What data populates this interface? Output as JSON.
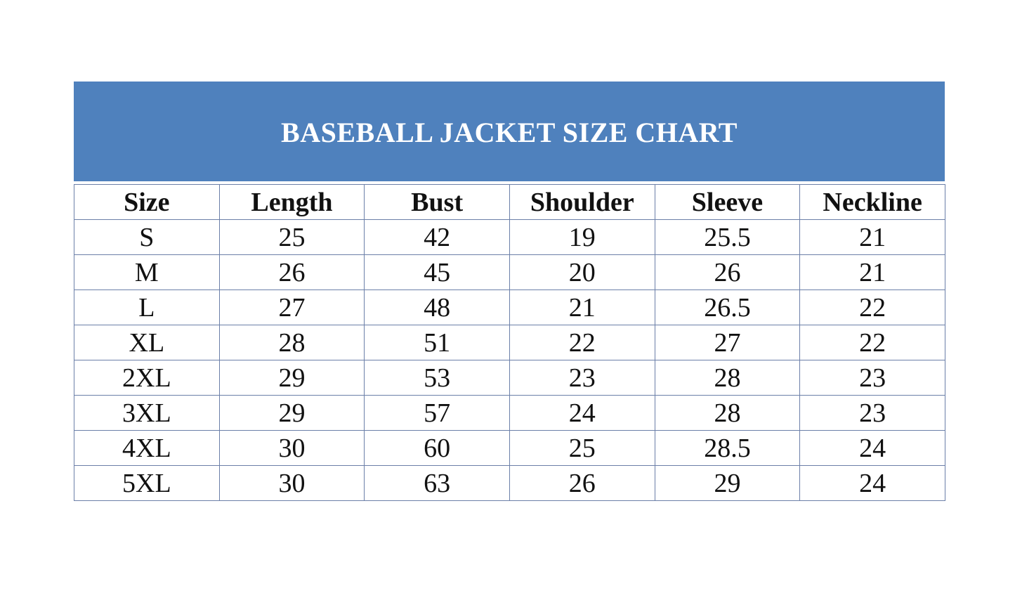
{
  "title": "BASEBALL JACKET SIZE CHART",
  "colors": {
    "header_band": "#4f81bd",
    "border": "#6b7fa8"
  },
  "table": {
    "columns": [
      "Size",
      "Length",
      "Bust",
      "Shoulder",
      "Sleeve",
      "Neckline"
    ],
    "rows": [
      [
        "S",
        "25",
        "42",
        "19",
        "25.5",
        "21"
      ],
      [
        "M",
        "26",
        "45",
        "20",
        "26",
        "21"
      ],
      [
        "L",
        "27",
        "48",
        "21",
        "26.5",
        "22"
      ],
      [
        "XL",
        "28",
        "51",
        "22",
        "27",
        "22"
      ],
      [
        "2XL",
        "29",
        "53",
        "23",
        "28",
        "23"
      ],
      [
        "3XL",
        "29",
        "57",
        "24",
        "28",
        "23"
      ],
      [
        "4XL",
        "30",
        "60",
        "25",
        "28.5",
        "24"
      ],
      [
        "5XL",
        "30",
        "63",
        "26",
        "29",
        "24"
      ]
    ]
  }
}
